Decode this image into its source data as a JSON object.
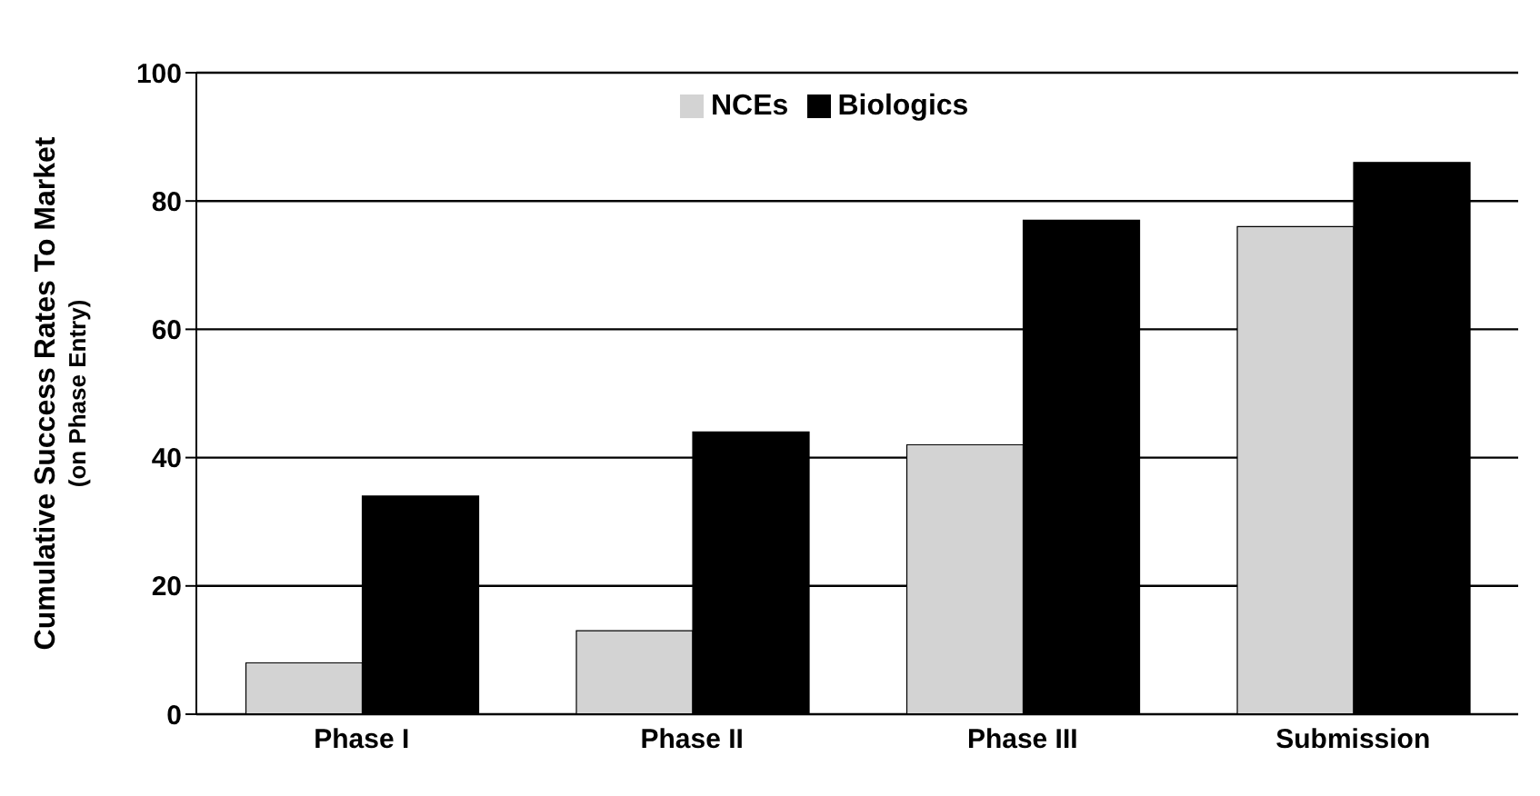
{
  "chart_data": {
    "type": "bar",
    "ylabel": "Cumulative Success Rates To Market\n(on Phase Entry)",
    "categories": [
      "Phase I",
      "Phase II",
      "Phase III",
      "Submission"
    ],
    "series": [
      {
        "name": "NCEs",
        "color": "#d3d3d3",
        "values": [
          8,
          13,
          42,
          76
        ]
      },
      {
        "name": "Biologics",
        "color": "#000000",
        "values": [
          34,
          44,
          77,
          86
        ]
      }
    ],
    "ylim": [
      0,
      100
    ],
    "yticks": [
      0,
      20,
      40,
      60,
      80,
      100
    ],
    "grid": "y",
    "legend": "top"
  }
}
